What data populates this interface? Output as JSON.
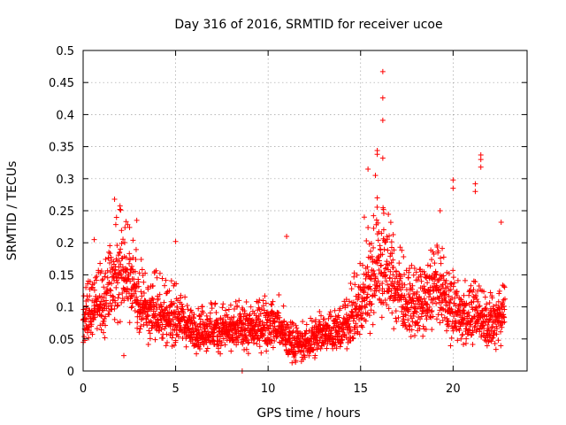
{
  "chart_data": {
    "type": "scatter",
    "title": "Day 316 of 2016, SRMTID for receiver ucoe",
    "xlabel": "GPS time / hours",
    "ylabel": "SRMTID / TECUs",
    "xlim": [
      0,
      24
    ],
    "ylim": [
      0,
      0.5
    ],
    "xticks": [
      "0",
      "5",
      "10",
      "15",
      "20"
    ],
    "xtick_values": [
      0,
      5,
      10,
      15,
      20
    ],
    "yticks": [
      "0",
      "0.05",
      "0.1",
      "0.15",
      "0.2",
      "0.25",
      "0.3",
      "0.35",
      "0.4",
      "0.45",
      "0.5"
    ],
    "ytick_values": [
      0,
      0.05,
      0.1,
      0.15,
      0.2,
      0.25,
      0.3,
      0.35,
      0.4,
      0.45,
      0.5
    ],
    "grid": true,
    "marker": "plus",
    "color": "#ff0000",
    "x_range": [
      0.0,
      22.8
    ],
    "series": [
      {
        "name": "SRMTID",
        "profile_x": [
          0.0,
          0.5,
          1.0,
          1.5,
          2.0,
          2.5,
          3.0,
          3.5,
          4.0,
          4.5,
          5.0,
          5.5,
          6.0,
          6.5,
          7.0,
          7.5,
          8.0,
          8.5,
          9.0,
          9.5,
          10.0,
          10.5,
          11.0,
          11.5,
          12.0,
          12.5,
          13.0,
          13.5,
          14.0,
          14.5,
          15.0,
          15.5,
          16.0,
          16.5,
          17.0,
          17.5,
          18.0,
          18.5,
          19.0,
          19.5,
          20.0,
          20.5,
          21.0,
          21.5,
          22.0,
          22.5,
          22.8
        ],
        "typical_y": [
          0.08,
          0.09,
          0.1,
          0.13,
          0.15,
          0.14,
          0.11,
          0.09,
          0.09,
          0.08,
          0.08,
          0.07,
          0.06,
          0.065,
          0.06,
          0.06,
          0.06,
          0.065,
          0.06,
          0.065,
          0.07,
          0.07,
          0.05,
          0.04,
          0.04,
          0.05,
          0.06,
          0.06,
          0.06,
          0.08,
          0.1,
          0.14,
          0.16,
          0.15,
          0.12,
          0.1,
          0.1,
          0.1,
          0.13,
          0.11,
          0.09,
          0.08,
          0.08,
          0.08,
          0.07,
          0.08,
          0.1
        ],
        "spread_y": [
          0.035,
          0.05,
          0.05,
          0.06,
          0.07,
          0.06,
          0.05,
          0.04,
          0.045,
          0.04,
          0.04,
          0.03,
          0.03,
          0.03,
          0.03,
          0.03,
          0.03,
          0.03,
          0.03,
          0.03,
          0.035,
          0.035,
          0.03,
          0.025,
          0.025,
          0.03,
          0.03,
          0.03,
          0.03,
          0.04,
          0.05,
          0.07,
          0.08,
          0.07,
          0.06,
          0.04,
          0.05,
          0.05,
          0.06,
          0.05,
          0.045,
          0.04,
          0.04,
          0.04,
          0.035,
          0.04,
          0.04
        ],
        "n_points": 2500,
        "notable_points": [
          {
            "x": 16.2,
            "y": 0.467
          },
          {
            "x": 16.2,
            "y": 0.426
          },
          {
            "x": 16.2,
            "y": 0.391
          },
          {
            "x": 15.9,
            "y": 0.344
          },
          {
            "x": 15.9,
            "y": 0.338
          },
          {
            "x": 16.2,
            "y": 0.332
          },
          {
            "x": 15.4,
            "y": 0.315
          },
          {
            "x": 15.8,
            "y": 0.305
          },
          {
            "x": 21.5,
            "y": 0.337
          },
          {
            "x": 21.5,
            "y": 0.33
          },
          {
            "x": 21.5,
            "y": 0.318
          },
          {
            "x": 20.0,
            "y": 0.298
          },
          {
            "x": 20.0,
            "y": 0.285
          },
          {
            "x": 21.2,
            "y": 0.292
          },
          {
            "x": 21.2,
            "y": 0.28
          },
          {
            "x": 1.7,
            "y": 0.268
          },
          {
            "x": 2.9,
            "y": 0.235
          },
          {
            "x": 19.3,
            "y": 0.25
          },
          {
            "x": 11.0,
            "y": 0.21
          },
          {
            "x": 5.0,
            "y": 0.202
          },
          {
            "x": 0.6,
            "y": 0.205
          },
          {
            "x": 22.6,
            "y": 0.232
          },
          {
            "x": 15.9,
            "y": 0.27
          },
          {
            "x": 15.2,
            "y": 0.24
          },
          {
            "x": 8.6,
            "y": 0.0
          },
          {
            "x": 2.2,
            "y": 0.024
          },
          {
            "x": 11.8,
            "y": 0.015
          }
        ]
      }
    ]
  }
}
